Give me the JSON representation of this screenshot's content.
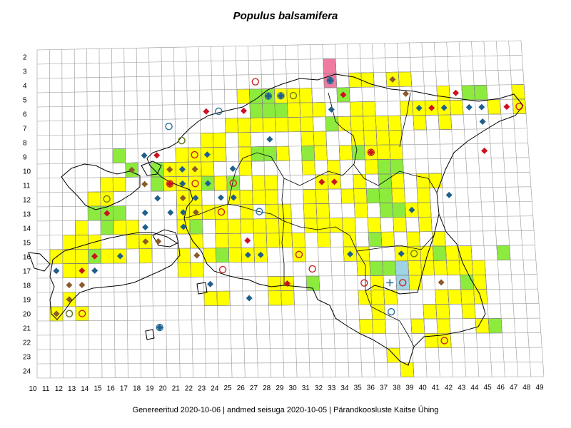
{
  "title": "Populus balsamifera",
  "footer": "Genereeritud 2020-10-06  |  andmed seisuga 2020-10-05  |  Pärandkoosluste Kaitse Ühing",
  "colors": {
    "yellow": "#ffff00",
    "green": "#8ceb3c",
    "pink": "#f07aa0",
    "lightblue": "#9fd3e6",
    "red_diamond": "#cc1122",
    "brown_diamond": "#8b5a2b",
    "blue_diamond": "#1f5f8b",
    "red_circle": "#cc2222",
    "blue_circle": "#2a6f9a",
    "olive_circle": "#6b7d1a",
    "grid": "#999999",
    "border": "#000000"
  },
  "axes": {
    "rows": [
      "2",
      "3",
      "4",
      "5",
      "6",
      "7",
      "8",
      "9",
      "10",
      "11",
      "12",
      "13",
      "14",
      "15",
      "16",
      "17",
      "18",
      "19",
      "20",
      "21",
      "22",
      "23",
      "24"
    ],
    "cols": [
      "10",
      "11",
      "12",
      "13",
      "14",
      "15",
      "16",
      "17",
      "18",
      "19",
      "20",
      "21",
      "22",
      "23",
      "24",
      "25",
      "26",
      "27",
      "28",
      "29",
      "30",
      "31",
      "32",
      "33",
      "34",
      "35",
      "36",
      "37",
      "38",
      "39",
      "40",
      "41",
      "42",
      "43",
      "44",
      "45",
      "46",
      "47",
      "48",
      "49"
    ]
  },
  "cells": {
    "yellow": [
      [
        33,
        3
      ],
      [
        35,
        4
      ],
      [
        36,
        4
      ],
      [
        38,
        4
      ],
      [
        39,
        4
      ],
      [
        42,
        5
      ],
      [
        26,
        5
      ],
      [
        27,
        5
      ],
      [
        28,
        5
      ],
      [
        29,
        5
      ],
      [
        30,
        5
      ],
      [
        31,
        5
      ],
      [
        30,
        6
      ],
      [
        31,
        6
      ],
      [
        32,
        6
      ],
      [
        35,
        6
      ],
      [
        36,
        6
      ],
      [
        39,
        6
      ],
      [
        40,
        6
      ],
      [
        41,
        6
      ],
      [
        42,
        6
      ],
      [
        43,
        6
      ],
      [
        46,
        6
      ],
      [
        48,
        5
      ],
      [
        48,
        6
      ],
      [
        25,
        7
      ],
      [
        26,
        7
      ],
      [
        27,
        7
      ],
      [
        28,
        7
      ],
      [
        29,
        7
      ],
      [
        30,
        7
      ],
      [
        31,
        7
      ],
      [
        34,
        7
      ],
      [
        35,
        7
      ],
      [
        36,
        7
      ],
      [
        37,
        7
      ],
      [
        38,
        7
      ],
      [
        40,
        7
      ],
      [
        42,
        7
      ],
      [
        23,
        8
      ],
      [
        24,
        8
      ],
      [
        26,
        8
      ],
      [
        31,
        8
      ],
      [
        32,
        8
      ],
      [
        35,
        8
      ],
      [
        36,
        8
      ],
      [
        37,
        8
      ],
      [
        38,
        8
      ],
      [
        21,
        9
      ],
      [
        22,
        9
      ],
      [
        23,
        9
      ],
      [
        24,
        9
      ],
      [
        26,
        9
      ],
      [
        27,
        9
      ],
      [
        29,
        9
      ],
      [
        32,
        9
      ],
      [
        34,
        9
      ],
      [
        36,
        9
      ],
      [
        37,
        9
      ],
      [
        38,
        9
      ],
      [
        17,
        10
      ],
      [
        19,
        10
      ],
      [
        20,
        10
      ],
      [
        21,
        10
      ],
      [
        22,
        10
      ],
      [
        23,
        10
      ],
      [
        26,
        10
      ],
      [
        31,
        10
      ],
      [
        33,
        10
      ],
      [
        36,
        10
      ],
      [
        37,
        10
      ],
      [
        15,
        11
      ],
      [
        16,
        11
      ],
      [
        19,
        11
      ],
      [
        20,
        11
      ],
      [
        21,
        11
      ],
      [
        22,
        11
      ],
      [
        24,
        11
      ],
      [
        27,
        11
      ],
      [
        28,
        11
      ],
      [
        32,
        11
      ],
      [
        33,
        11
      ],
      [
        35,
        11
      ],
      [
        38,
        11
      ],
      [
        40,
        11
      ],
      [
        41,
        11
      ],
      [
        14,
        12
      ],
      [
        15,
        12
      ],
      [
        21,
        12
      ],
      [
        22,
        12
      ],
      [
        25,
        12
      ],
      [
        26,
        12
      ],
      [
        27,
        12
      ],
      [
        28,
        12
      ],
      [
        31,
        12
      ],
      [
        32,
        12
      ],
      [
        34,
        12
      ],
      [
        35,
        12
      ],
      [
        37,
        12
      ],
      [
        38,
        12
      ],
      [
        40,
        12
      ],
      [
        21,
        13
      ],
      [
        22,
        13
      ],
      [
        23,
        13
      ],
      [
        24,
        13
      ],
      [
        26,
        13
      ],
      [
        28,
        13
      ],
      [
        29,
        13
      ],
      [
        31,
        13
      ],
      [
        32,
        13
      ],
      [
        35,
        13
      ],
      [
        37,
        13
      ],
      [
        39,
        13
      ],
      [
        40,
        13
      ],
      [
        13,
        14
      ],
      [
        16,
        14
      ],
      [
        17,
        14
      ],
      [
        21,
        14
      ],
      [
        22,
        14
      ],
      [
        24,
        14
      ],
      [
        25,
        14
      ],
      [
        26,
        14
      ],
      [
        27,
        14
      ],
      [
        28,
        14
      ],
      [
        29,
        14
      ],
      [
        31,
        14
      ],
      [
        32,
        14
      ],
      [
        33,
        14
      ],
      [
        34,
        14
      ],
      [
        36,
        14
      ],
      [
        38,
        14
      ],
      [
        40,
        14
      ],
      [
        12,
        15
      ],
      [
        13,
        15
      ],
      [
        14,
        15
      ],
      [
        17,
        15
      ],
      [
        18,
        15
      ],
      [
        22,
        15
      ],
      [
        24,
        15
      ],
      [
        25,
        15
      ],
      [
        27,
        15
      ],
      [
        28,
        15
      ],
      [
        29,
        15
      ],
      [
        30,
        15
      ],
      [
        32,
        15
      ],
      [
        34,
        15
      ],
      [
        37,
        15
      ],
      [
        39,
        15
      ],
      [
        41,
        15
      ],
      [
        11,
        16
      ],
      [
        12,
        16
      ],
      [
        13,
        16
      ],
      [
        15,
        16
      ],
      [
        16,
        16
      ],
      [
        18,
        16
      ],
      [
        21,
        16
      ],
      [
        23,
        16
      ],
      [
        25,
        16
      ],
      [
        26,
        16
      ],
      [
        27,
        16
      ],
      [
        30,
        16
      ],
      [
        34,
        16
      ],
      [
        35,
        16
      ],
      [
        38,
        16
      ],
      [
        39,
        16
      ],
      [
        40,
        16
      ],
      [
        42,
        16
      ],
      [
        43,
        16
      ],
      [
        12,
        17
      ],
      [
        13,
        17
      ],
      [
        21,
        17
      ],
      [
        22,
        17
      ],
      [
        35,
        17
      ],
      [
        39,
        17
      ],
      [
        40,
        17
      ],
      [
        41,
        17
      ],
      [
        42,
        17
      ],
      [
        43,
        17
      ],
      [
        44,
        17
      ],
      [
        28,
        18
      ],
      [
        29,
        18
      ],
      [
        36,
        18
      ],
      [
        39,
        18
      ],
      [
        43,
        18
      ],
      [
        44,
        18
      ],
      [
        12,
        19
      ],
      [
        23,
        19
      ],
      [
        24,
        19
      ],
      [
        28,
        19
      ],
      [
        29,
        19
      ],
      [
        35,
        19
      ],
      [
        36,
        19
      ],
      [
        37,
        19
      ],
      [
        41,
        19
      ],
      [
        42,
        19
      ],
      [
        43,
        19
      ],
      [
        44,
        19
      ],
      [
        11,
        20
      ],
      [
        13,
        20
      ],
      [
        36,
        20
      ],
      [
        40,
        20
      ],
      [
        41,
        20
      ],
      [
        43,
        20
      ],
      [
        35,
        21
      ],
      [
        36,
        21
      ],
      [
        39,
        21
      ],
      [
        41,
        21
      ],
      [
        44,
        21
      ],
      [
        40,
        22
      ],
      [
        41,
        22
      ],
      [
        37,
        23
      ],
      [
        38,
        24
      ]
    ],
    "green": [
      [
        27,
        5
      ],
      [
        28,
        5
      ],
      [
        34,
        5
      ],
      [
        44,
        5
      ],
      [
        45,
        5
      ],
      [
        27,
        6
      ],
      [
        28,
        6
      ],
      [
        29,
        6
      ],
      [
        33,
        7
      ],
      [
        31,
        9
      ],
      [
        35,
        9
      ],
      [
        27,
        9
      ],
      [
        28,
        9
      ],
      [
        16,
        9
      ],
      [
        17,
        10
      ],
      [
        19,
        10
      ],
      [
        37,
        10
      ],
      [
        38,
        10
      ],
      [
        37,
        11
      ],
      [
        19,
        11
      ],
      [
        23,
        11
      ],
      [
        25,
        11
      ],
      [
        36,
        12
      ],
      [
        37,
        12
      ],
      [
        37,
        13
      ],
      [
        38,
        13
      ],
      [
        14,
        13
      ],
      [
        15,
        13
      ],
      [
        16,
        13
      ],
      [
        15,
        14
      ],
      [
        22,
        14
      ],
      [
        36,
        15
      ],
      [
        14,
        16
      ],
      [
        24,
        16
      ],
      [
        41,
        16
      ],
      [
        46,
        16
      ],
      [
        37,
        17
      ],
      [
        36,
        17
      ],
      [
        31,
        18
      ],
      [
        38,
        18
      ],
      [
        43,
        18
      ],
      [
        45,
        21
      ]
    ],
    "pink": [
      [
        33,
        3
      ],
      [
        33,
        4
      ]
    ],
    "lightblue": [
      [
        38,
        17
      ],
      [
        38,
        18
      ]
    ]
  },
  "markers": {
    "red_diamond": [
      [
        34,
        5
      ],
      [
        43,
        5
      ],
      [
        41,
        6
      ],
      [
        47,
        6
      ],
      [
        23,
        6
      ],
      [
        26,
        6
      ],
      [
        45,
        9
      ],
      [
        19,
        9
      ],
      [
        20,
        10
      ],
      [
        20,
        11
      ],
      [
        33,
        11
      ],
      [
        25,
        12
      ],
      [
        15,
        13
      ],
      [
        36,
        9
      ],
      [
        26,
        15
      ],
      [
        14,
        16
      ],
      [
        13,
        17
      ],
      [
        29,
        18
      ],
      [
        32,
        11
      ]
    ],
    "brown_diamond": [
      [
        38,
        4
      ],
      [
        39,
        5
      ],
      [
        17,
        10
      ],
      [
        20,
        10
      ],
      [
        21,
        10
      ],
      [
        22,
        10
      ],
      [
        18,
        11
      ],
      [
        21,
        11
      ],
      [
        21,
        12
      ],
      [
        25,
        12
      ],
      [
        22,
        13
      ],
      [
        18,
        15
      ],
      [
        19,
        15
      ],
      [
        22,
        16
      ],
      [
        12,
        18
      ],
      [
        13,
        18
      ],
      [
        12,
        19
      ],
      [
        11,
        20
      ],
      [
        41,
        18
      ]
    ],
    "blue_diamond": [
      [
        33,
        4
      ],
      [
        28,
        5
      ],
      [
        29,
        5
      ],
      [
        33,
        6
      ],
      [
        40,
        6
      ],
      [
        42,
        6
      ],
      [
        44,
        6
      ],
      [
        45,
        7
      ],
      [
        28,
        8
      ],
      [
        18,
        9
      ],
      [
        23,
        9
      ],
      [
        25,
        10
      ],
      [
        21,
        10
      ],
      [
        21,
        11
      ],
      [
        23,
        11
      ],
      [
        19,
        12
      ],
      [
        22,
        12
      ],
      [
        24,
        12
      ],
      [
        25,
        12
      ],
      [
        18,
        13
      ],
      [
        20,
        13
      ],
      [
        21,
        13
      ],
      [
        18,
        14
      ],
      [
        21,
        14
      ],
      [
        16,
        16
      ],
      [
        26,
        16
      ],
      [
        27,
        16
      ],
      [
        34,
        16
      ],
      [
        38,
        16
      ],
      [
        14,
        17
      ],
      [
        11,
        17
      ],
      [
        23,
        18
      ],
      [
        26,
        19
      ],
      [
        19,
        21
      ],
      [
        39,
        13
      ],
      [
        42,
        12
      ],
      [
        45,
        6
      ]
    ],
    "red_circle": [
      [
        27,
        4
      ],
      [
        48,
        6
      ],
      [
        22,
        9
      ],
      [
        20,
        11
      ],
      [
        22,
        11
      ],
      [
        25,
        11
      ],
      [
        24,
        13
      ],
      [
        30,
        16
      ],
      [
        31,
        17
      ],
      [
        35,
        18
      ],
      [
        36,
        9
      ],
      [
        24,
        17
      ],
      [
        38,
        18
      ],
      [
        41,
        22
      ],
      [
        13,
        20
      ]
    ],
    "blue_circle": [
      [
        24,
        6
      ],
      [
        20,
        7
      ],
      [
        27,
        13
      ],
      [
        37,
        20
      ],
      [
        21,
        8
      ],
      [
        28,
        5
      ],
      [
        29,
        5
      ],
      [
        19,
        21
      ],
      [
        33,
        4
      ],
      [
        12,
        20
      ]
    ],
    "olive_circle": [
      [
        30,
        5
      ],
      [
        21,
        8
      ],
      [
        15,
        12
      ],
      [
        39,
        16
      ],
      [
        12,
        20
      ]
    ]
  },
  "cross": [
    37,
    18
  ]
}
